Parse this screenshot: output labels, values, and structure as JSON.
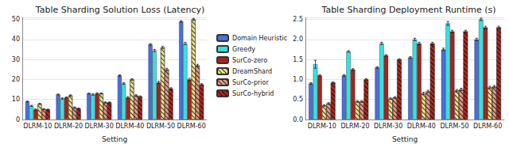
{
  "chart_data": [
    {
      "type": "bar",
      "title": "Table Sharding Solution Loss (Latency)",
      "x_label": "Setting",
      "categories": [
        "DLRM-10",
        "DLRM-20",
        "DLRM-30",
        "DLRM-40",
        "DLRM-50",
        "DLRM-60"
      ],
      "ylim": [
        0,
        51
      ],
      "yticks": [
        0,
        10,
        20,
        30,
        40,
        50
      ],
      "grid": true,
      "legend": "right",
      "series": [
        {
          "name": "Domain Heuristic",
          "color": "#4a6fd6",
          "values": [
            9,
            12.5,
            13,
            22,
            37.5,
            49
          ],
          "errors": [
            0.2,
            0.2,
            0.2,
            0.3,
            0.4,
            0.4
          ]
        },
        {
          "name": "Greedy",
          "color": "#36e2e0",
          "values": [
            6.8,
            10.5,
            12.5,
            18,
            34.5,
            38
          ],
          "errors": [
            0.3,
            0.3,
            0.4,
            0.4,
            0.5,
            0.6
          ]
        },
        {
          "name": "SurCo-zero",
          "color": "#a3231c",
          "values": [
            5,
            11,
            13,
            11,
            18.5,
            20
          ],
          "errors": [
            0.3,
            0.3,
            0.4,
            0.5,
            0.6,
            0.6
          ]
        },
        {
          "name": "DreamShard",
          "color": "#ede28a",
          "marker": "hatch",
          "values": [
            7.8,
            12,
            13,
            20,
            36,
            50
          ],
          "errors": [
            0.3,
            0.3,
            0.3,
            0.4,
            0.5,
            0.5
          ]
        },
        {
          "name": "SurCo-prior",
          "color": "#e99a82",
          "marker": "hatch",
          "values": [
            5.2,
            6,
            8.5,
            12,
            25,
            27
          ],
          "errors": [
            0.3,
            0.3,
            0.3,
            0.4,
            0.6,
            0.6
          ]
        },
        {
          "name": "SurCo-hybrid",
          "color": "#b3241d",
          "marker": "hatch",
          "values": [
            5,
            5.5,
            8.5,
            11.5,
            15.5,
            17.5
          ],
          "errors": [
            0.2,
            0.2,
            0.3,
            0.3,
            0.4,
            0.4
          ]
        }
      ]
    },
    {
      "type": "bar",
      "title": "Table Sharding Deployment Runtime (s)",
      "x_label": "Setting",
      "categories": [
        "DLRM-10",
        "DLRM-20",
        "DLRM-30",
        "DLRM-40",
        "DLRM-50",
        "DLRM-60"
      ],
      "ylim": [
        0,
        2.55
      ],
      "yticks": [
        {
          "value": 0,
          "label": "0.0"
        },
        0.5,
        {
          "value": 1,
          "label": "1.0"
        },
        1.5,
        {
          "value": 2,
          "label": "2.0"
        },
        2.5
      ],
      "grid": true,
      "series": [
        {
          "name": "Domain Heuristic",
          "color": "#4a6fd6",
          "values": [
            0.9,
            1.1,
            1.3,
            1.55,
            1.75,
            2.0
          ],
          "errors": [
            0.02,
            0.02,
            0.02,
            0.02,
            0.03,
            0.03
          ]
        },
        {
          "name": "Greedy",
          "color": "#36e2e0",
          "values": [
            1.38,
            1.7,
            1.9,
            2.0,
            2.4,
            2.5
          ],
          "errors": [
            0.1,
            0.02,
            0.03,
            0.03,
            0.05,
            0.03
          ]
        },
        {
          "name": "SurCo-zero",
          "color": "#a3231c",
          "values": [
            1.1,
            1.25,
            1.6,
            1.9,
            2.2,
            2.3
          ],
          "errors": [
            0.02,
            0.02,
            0.02,
            0.03,
            0.03,
            0.03
          ]
        },
        {
          "name": "DreamShard",
          "color": "#ede28a",
          "marker": "hatch",
          "values": [
            0.35,
            0.45,
            0.52,
            0.65,
            0.72,
            0.8
          ],
          "errors": [
            0.02,
            0.02,
            0.02,
            0.03,
            0.03,
            0.03
          ]
        },
        {
          "name": "SurCo-prior",
          "color": "#e99a82",
          "marker": "hatch",
          "values": [
            0.4,
            0.45,
            0.55,
            0.7,
            0.75,
            0.82
          ],
          "errors": [
            0.02,
            0.02,
            0.02,
            0.03,
            0.03,
            0.03
          ]
        },
        {
          "name": "SurCo-hybrid",
          "color": "#b3241d",
          "marker": "hatch",
          "values": [
            0.92,
            1.0,
            1.5,
            1.9,
            2.2,
            2.3
          ],
          "errors": [
            0.02,
            0.02,
            0.02,
            0.03,
            0.03,
            0.03
          ]
        }
      ]
    }
  ]
}
